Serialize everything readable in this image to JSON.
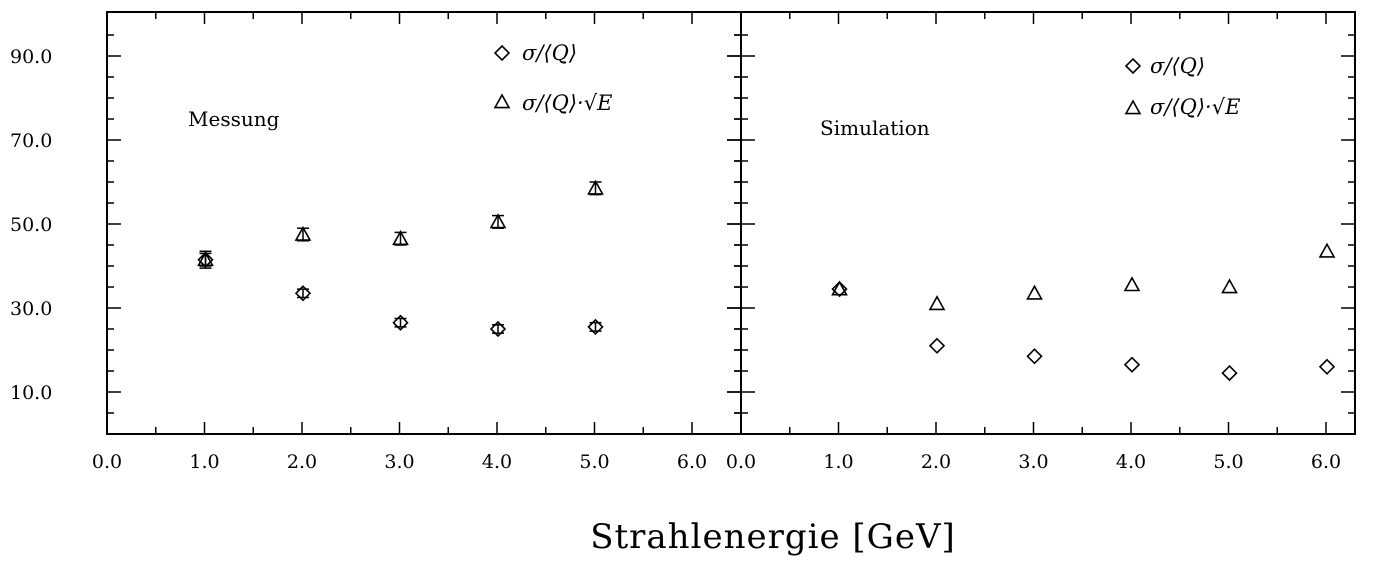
{
  "chart_data": [
    {
      "type": "scatter",
      "panel_label": "Messung",
      "xlabel": "Strahlenergie [GeV]",
      "xlim": [
        0.0,
        6.5
      ],
      "ylim": [
        0.0,
        100.0
      ],
      "x_tick_labels": [
        "0.0",
        "1.0",
        "2.0",
        "3.0",
        "4.0",
        "5.0",
        "6.0"
      ],
      "y_tick_labels": [
        "10.0",
        "30.0",
        "50.0",
        "70.0",
        "90.0"
      ],
      "legend_position": "top-right",
      "series": [
        {
          "name": "σ/⟨Q⟩",
          "marker": "diamond",
          "x": [
            1.0,
            2.0,
            3.0,
            4.0,
            5.0
          ],
          "y": [
            41.5,
            33.5,
            26.5,
            25.0,
            25.5
          ],
          "err": [
            1.5,
            1.0,
            1.0,
            1.0,
            1.0
          ]
        },
        {
          "name": "σ/⟨Q⟩·√E",
          "marker": "triangle",
          "x": [
            1.0,
            2.0,
            3.0,
            4.0,
            5.0
          ],
          "y": [
            41.5,
            47.5,
            46.5,
            50.5,
            58.5
          ],
          "err": [
            2.0,
            1.5,
            1.5,
            1.5,
            1.5
          ]
        }
      ]
    },
    {
      "type": "scatter",
      "panel_label": "Simulation",
      "xlabel": "Strahlenergie [GeV]",
      "xlim": [
        0.0,
        6.5
      ],
      "ylim": [
        0.0,
        100.0
      ],
      "x_tick_labels": [
        "0.0",
        "1.0",
        "2.0",
        "3.0",
        "4.0",
        "5.0",
        "6.0"
      ],
      "legend_position": "top-right",
      "series": [
        {
          "name": "σ/⟨Q⟩",
          "marker": "diamond",
          "x": [
            1.0,
            2.0,
            3.0,
            4.0,
            5.0,
            6.0
          ],
          "y": [
            34.5,
            21.0,
            18.5,
            16.5,
            14.5,
            16.0
          ]
        },
        {
          "name": "σ/⟨Q⟩·√E",
          "marker": "triangle",
          "x": [
            1.0,
            2.0,
            3.0,
            4.0,
            5.0,
            6.0
          ],
          "y": [
            34.5,
            31.0,
            33.5,
            35.5,
            35.0,
            43.5
          ]
        }
      ]
    }
  ]
}
